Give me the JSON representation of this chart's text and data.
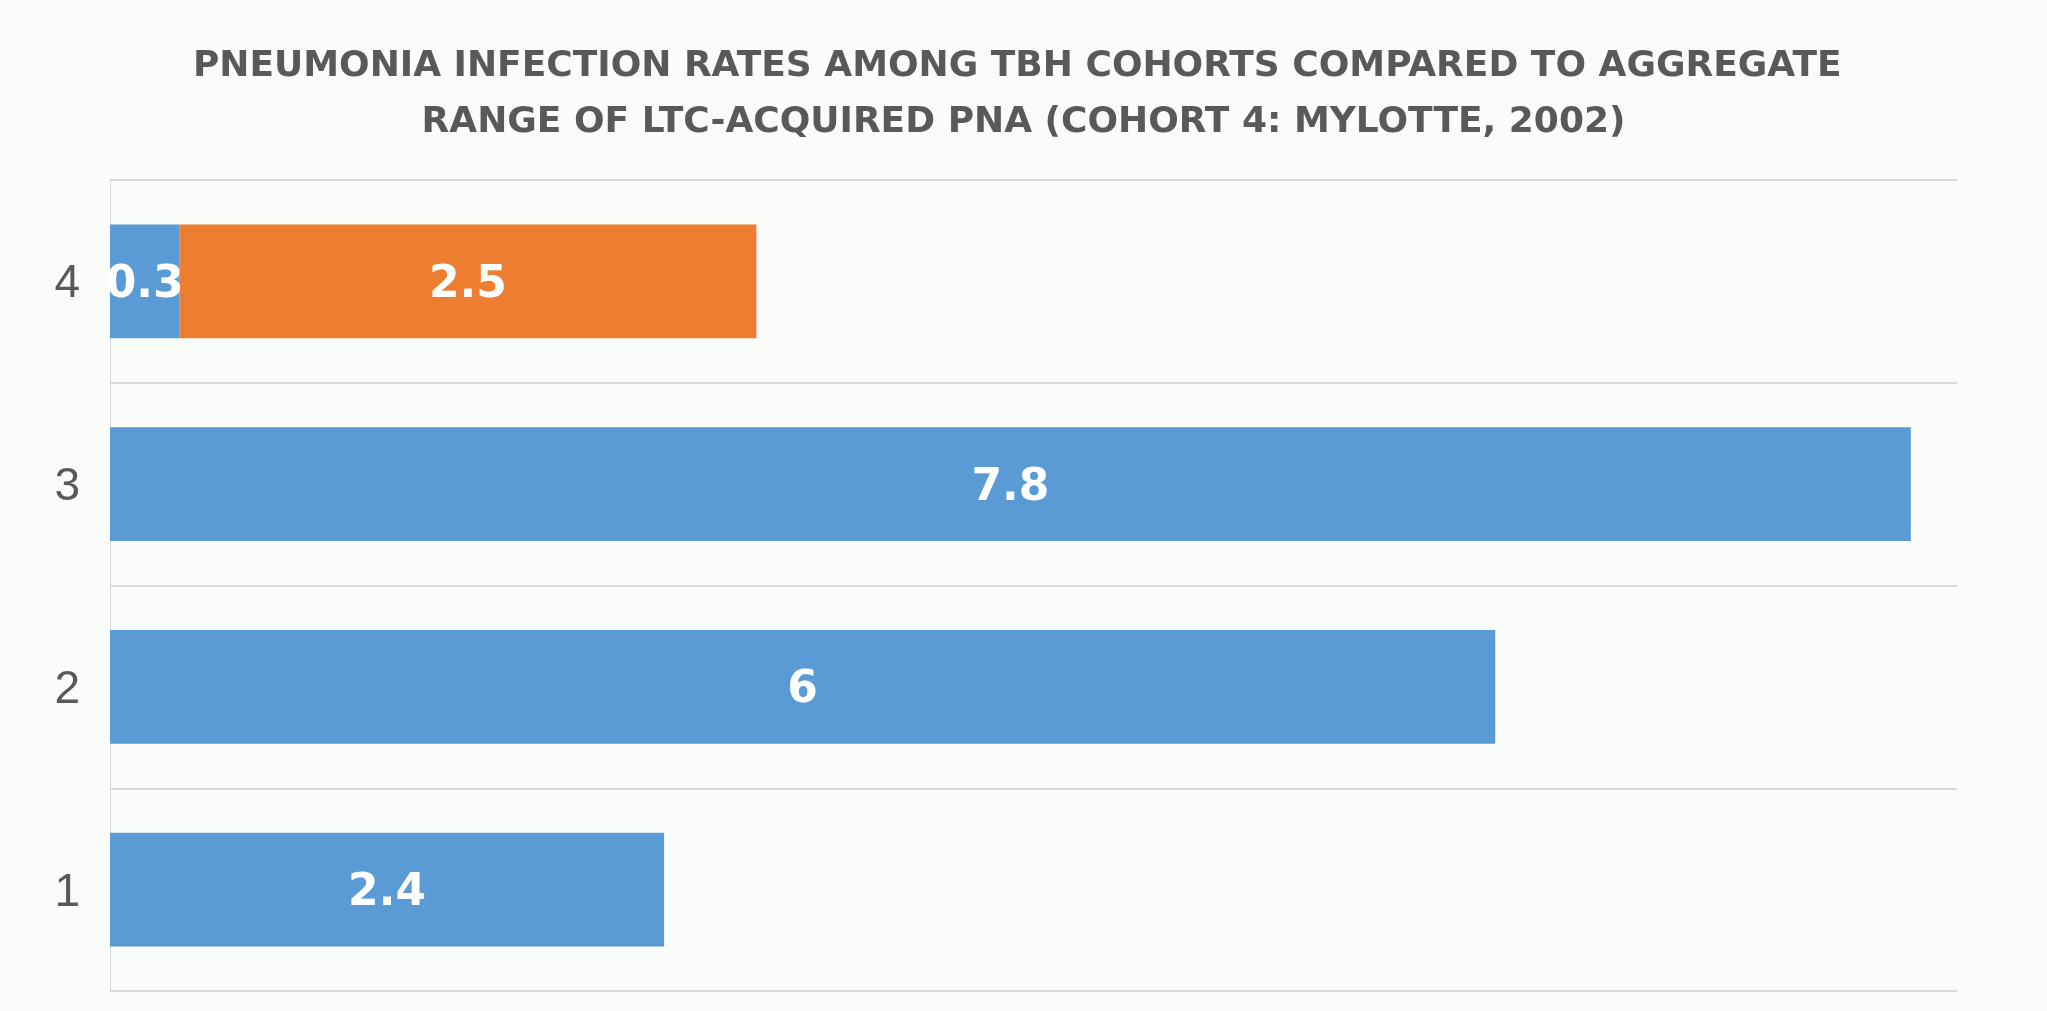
{
  "chart_data": {
    "type": "bar",
    "orientation": "horizontal",
    "stacked": true,
    "title": "PNEUMONIA INFECTION RATES AMONG TBH COHORTS COMPARED TO AGGREGATE RANGE OF LTC-ACQUIRED PNA (COHORT 4: MYLOTTE, 2002)",
    "categories": [
      "4",
      "3",
      "2",
      "1"
    ],
    "series": [
      {
        "color": "#5b9bd5",
        "values": [
          0.3,
          7.8,
          6,
          2.4
        ]
      },
      {
        "color": "#ed7d31",
        "values": [
          2.5,
          null,
          null,
          null
        ]
      }
    ],
    "data_labels": true,
    "grid": "y"
  }
}
